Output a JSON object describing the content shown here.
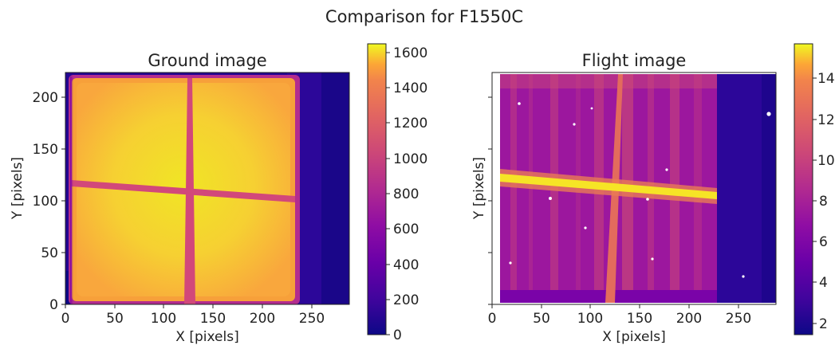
{
  "figure": {
    "title": "Comparison for F1550C"
  },
  "chart_data": [
    {
      "type": "heatmap",
      "title": "Ground image",
      "xlabel": "X [pixels]",
      "ylabel": "Y [pixels]",
      "xlim": [
        0,
        288
      ],
      "ylim": [
        0,
        224
      ],
      "xticks": [
        0,
        50,
        100,
        150,
        200,
        250
      ],
      "yticks": [
        0,
        50,
        100,
        150,
        200
      ],
      "colormap": "plasma",
      "colorbar": {
        "range": [
          0,
          1650
        ],
        "ticks": [
          0,
          200,
          400,
          600,
          800,
          1000,
          1200,
          1400,
          1600
        ]
      },
      "features": {
        "illuminated_region_x": [
          5,
          230
        ],
        "illuminated_region_y": [
          5,
          215
        ],
        "plateau_value": 1550,
        "vertical_bar": {
          "x_bottom": 112,
          "x_top": 128,
          "value": 700
        },
        "horizontal_bar": {
          "y_left": 119,
          "y_right": 101,
          "value": 700
        },
        "right_strip_x": [
          230,
          288
        ],
        "right_strip_value": 50
      }
    },
    {
      "type": "heatmap",
      "title": "Flight image",
      "xlabel": "X [pixels]",
      "ylabel": "Y [pixels]",
      "xlim": [
        0,
        288
      ],
      "ylim": [
        0,
        224
      ],
      "xticks": [
        0,
        50,
        100,
        150,
        200,
        250
      ],
      "yticks": [],
      "colormap": "plasma",
      "colorbar": {
        "range": [
          1.5,
          15.8
        ],
        "ticks": [
          2,
          4,
          6,
          8,
          10,
          12,
          14
        ]
      },
      "features": {
        "illuminated_region_x": [
          10,
          230
        ],
        "background_value": 6.5,
        "bright_streak": {
          "y_left": 124,
          "y_right": 103,
          "value": 15
        },
        "vertical_bar": {
          "x_bottom": 112,
          "x_top": 128,
          "value": 10
        },
        "right_strip_x": [
          230,
          288
        ],
        "right_strip_value": 2.3
      }
    }
  ]
}
